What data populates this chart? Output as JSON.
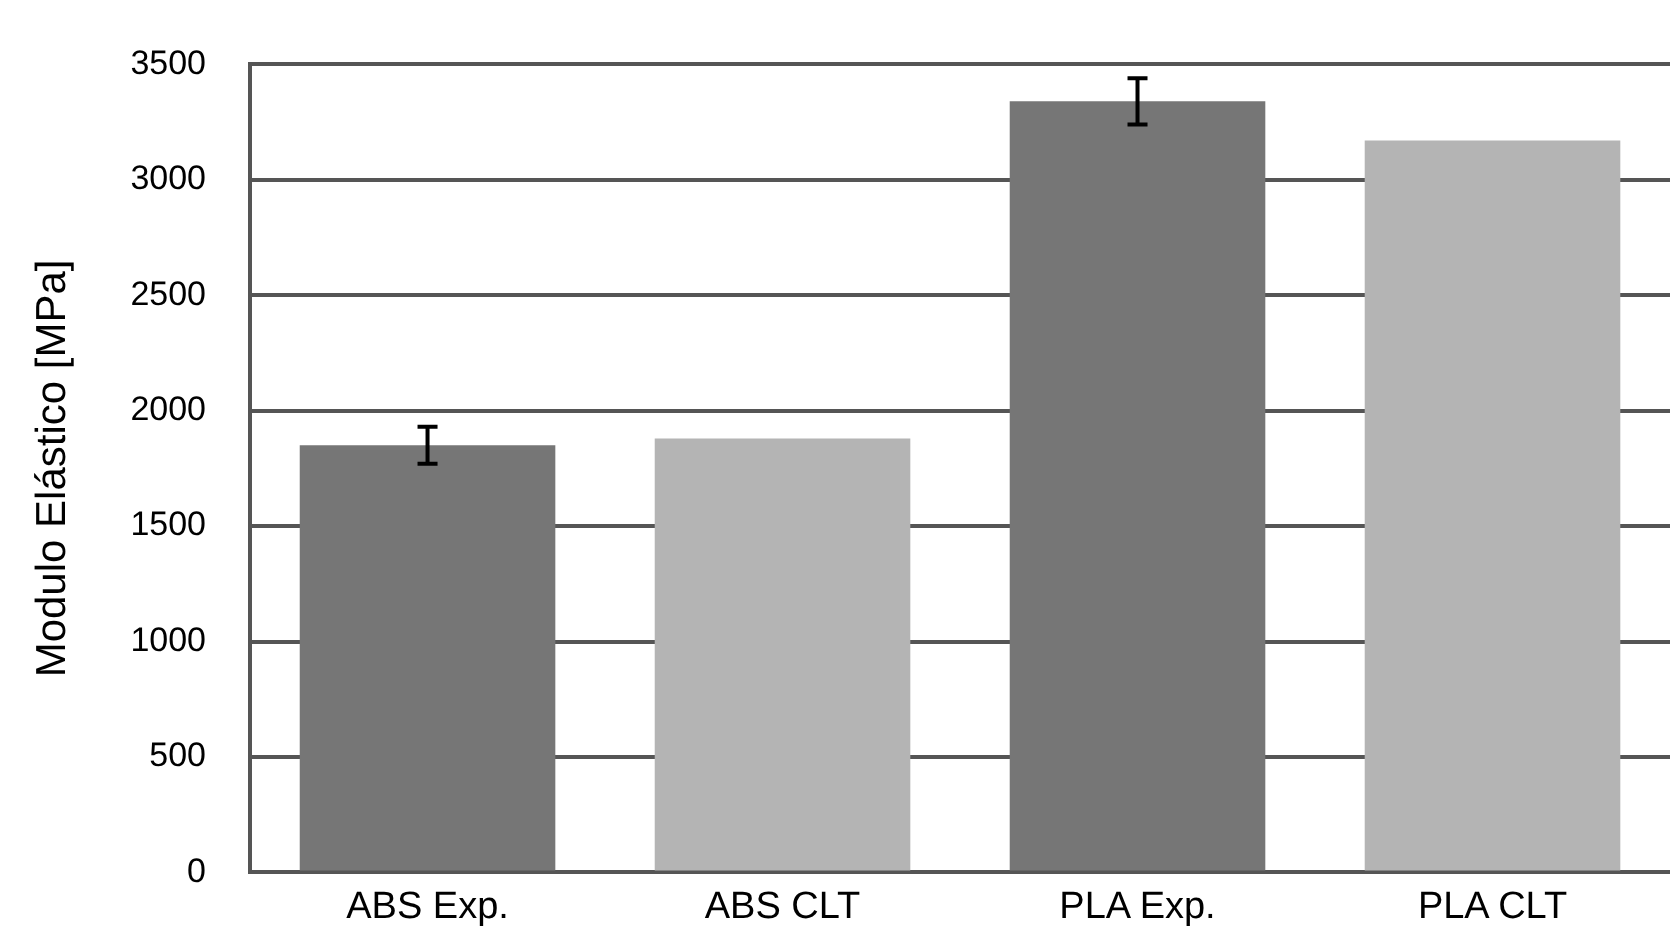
{
  "chart_data": {
    "type": "bar",
    "ylabel": "Modulo Elástico [MPa]",
    "categories": [
      "ABS Exp.",
      "ABS CLT",
      "PLA Exp.",
      "PLA CLT"
    ],
    "values": [
      1850,
      1880,
      3340,
      3170
    ],
    "colors": [
      "#767676",
      "#b4b4b4",
      "#767676",
      "#b4b4b4"
    ],
    "errors": [
      80,
      null,
      100,
      null
    ],
    "ylim": [
      0,
      3500
    ],
    "yticks": [
      0,
      500,
      1000,
      1500,
      2000,
      2500,
      3000,
      3500
    ],
    "grid": "y",
    "legend": false
  }
}
